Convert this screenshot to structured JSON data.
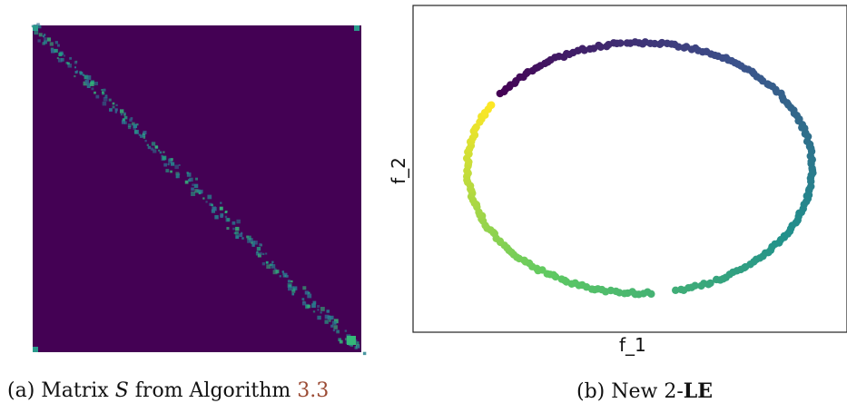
{
  "panel_a": {
    "caption_prefix": "(a) Matrix ",
    "caption_symbol": "S",
    "caption_middle": " from Algorithm ",
    "caption_ref": "3.3",
    "matrix_background_color": "#440154",
    "diagonal_color": "#2a9a8c"
  },
  "panel_b": {
    "caption_prefix": "(b) New 2-",
    "caption_bold": "LE"
  },
  "chart_data": {
    "type": "scatter",
    "title": "",
    "xlabel": "f_1",
    "ylabel": "f_2",
    "grid": false,
    "ticks": "none",
    "colormap": [
      "#440154",
      "#3b528b",
      "#21918c",
      "#5ec962",
      "#fde725"
    ],
    "shape": "ellipse of points with a gap near the bottom center",
    "points": 260
  }
}
